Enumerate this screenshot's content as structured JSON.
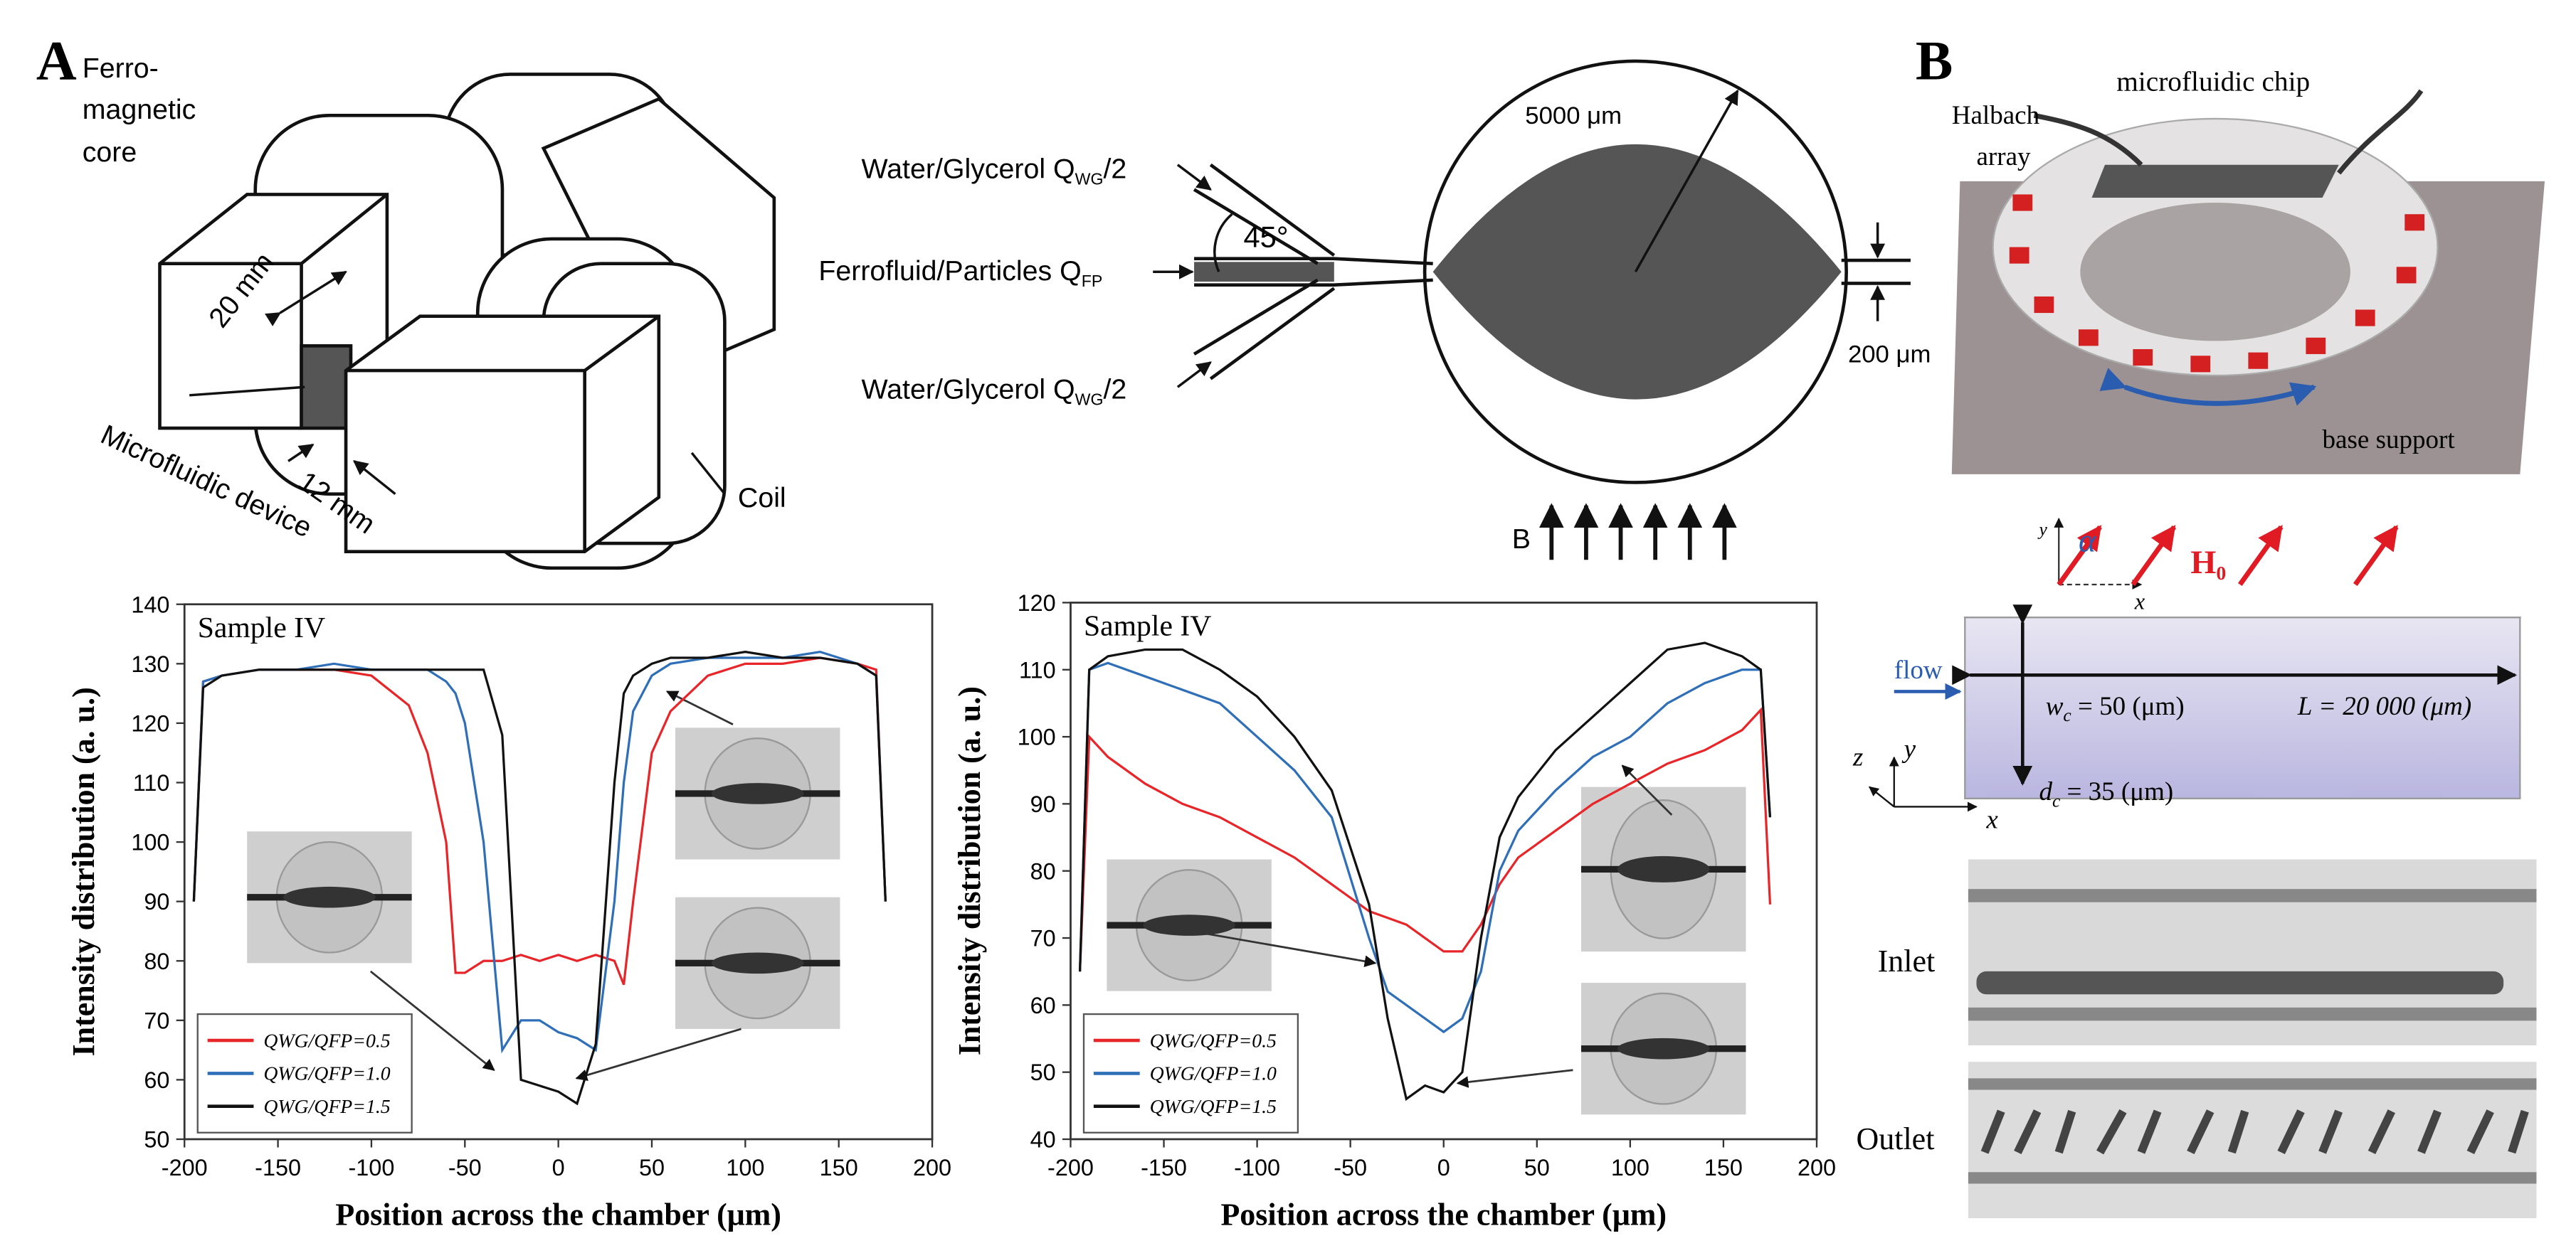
{
  "panels": {
    "a": "A",
    "b": "B"
  },
  "magnet": {
    "core": [
      "Ferro-",
      "magnetic",
      "core"
    ],
    "width": "20 mm",
    "device": "Microfluidic device",
    "gap": "12 mm",
    "coil": "Coil"
  },
  "chamber": {
    "inlet_top": {
      "text": "Water/Glycerol Q",
      "sub": "WG",
      "rest": "/2"
    },
    "inlet_mid": {
      "text": "Ferrofluid/Particles Q",
      "sub": "FP"
    },
    "inlet_bottom": {
      "text": "Water/Glycerol Q",
      "sub": "WG",
      "rest": "/2"
    },
    "angle": "45°",
    "radius": "5000 μm",
    "outlet": "200 μm",
    "field": "B"
  },
  "panel_b": {
    "chip": "microfluidic chip",
    "halbach": [
      "Halbach",
      "array"
    ],
    "base": "base support",
    "alpha": "α",
    "field": {
      "sym": "H",
      "sub": "0"
    },
    "flow": "flow",
    "wc": {
      "sym": "w",
      "sub": "c",
      "rest": " = 50 (μm)"
    },
    "length": "L = 20 000 (μm)",
    "dc": {
      "sym": "d",
      "sub": "c",
      "rest": " = 35 (μm)"
    },
    "axes": [
      "z",
      "y",
      "x",
      "y",
      "x"
    ],
    "inlet": "Inlet",
    "outlet": "Outlet"
  },
  "chart_data": [
    {
      "type": "line",
      "title": "Sample IV",
      "x_label": "Position across the chamber (μm)",
      "y_label": "Intensity distribution (a. u.)",
      "x": [
        -195,
        -190,
        -180,
        -160,
        -140,
        -120,
        -100,
        -80,
        -70,
        -60,
        -55,
        -50,
        -40,
        -30,
        -20,
        -10,
        0,
        10,
        20,
        30,
        35,
        40,
        50,
        60,
        80,
        100,
        120,
        140,
        160,
        170,
        175
      ],
      "series": [
        {
          "name": "QWG/QFP=0.5",
          "color": "#e8262a",
          "values": [
            90,
            127,
            128,
            129,
            129,
            129,
            128,
            123,
            115,
            100,
            78,
            78,
            80,
            80,
            81,
            80,
            81,
            80,
            81,
            80,
            76,
            90,
            115,
            122,
            128,
            130,
            130,
            131,
            130,
            129,
            90
          ]
        },
        {
          "name": "QWG/QFP=1.0",
          "color": "#2f6fb8",
          "values": [
            90,
            127,
            128,
            129,
            129,
            130,
            129,
            129,
            129,
            127,
            125,
            120,
            100,
            65,
            70,
            70,
            68,
            67,
            65,
            90,
            110,
            122,
            128,
            130,
            131,
            131,
            131,
            132,
            130,
            128,
            90
          ]
        },
        {
          "name": "QWG/QFP=1.5",
          "color": "#111111",
          "values": [
            90,
            126,
            128,
            129,
            129,
            129,
            129,
            129,
            129,
            129,
            129,
            129,
            129,
            118,
            60,
            59,
            58,
            56,
            66,
            110,
            125,
            128,
            130,
            131,
            131,
            132,
            131,
            131,
            130,
            128,
            90
          ]
        }
      ],
      "xlim": [
        -200,
        200
      ],
      "ylim": [
        50,
        140
      ],
      "xticks": [
        -200,
        -150,
        -100,
        -50,
        0,
        50,
        100,
        150,
        200
      ],
      "yticks": [
        50,
        60,
        70,
        80,
        90,
        100,
        110,
        120,
        130,
        140
      ],
      "legend": "lower left"
    },
    {
      "type": "line",
      "title": "Sample IV",
      "x_label": "Position across the chamber (μm)",
      "y_label": "Intensity distribution (a. u.)",
      "x": [
        -195,
        -190,
        -180,
        -160,
        -140,
        -120,
        -100,
        -80,
        -60,
        -40,
        -30,
        -20,
        -10,
        0,
        10,
        20,
        30,
        40,
        60,
        80,
        100,
        120,
        140,
        160,
        170,
        175
      ],
      "series": [
        {
          "name": "QWG/QFP=0.5",
          "color": "#e8262a",
          "values": [
            65,
            100,
            97,
            93,
            90,
            88,
            85,
            82,
            78,
            74,
            73,
            72,
            70,
            68,
            68,
            72,
            78,
            82,
            86,
            90,
            93,
            96,
            98,
            101,
            104,
            75
          ]
        },
        {
          "name": "QWG/QFP=1.0",
          "color": "#2f6fb8",
          "values": [
            65,
            110,
            111,
            109,
            107,
            105,
            100,
            95,
            88,
            70,
            62,
            60,
            58,
            56,
            58,
            65,
            80,
            86,
            92,
            97,
            100,
            105,
            108,
            110,
            110,
            88
          ]
        },
        {
          "name": "QWG/QFP=1.5",
          "color": "#111111",
          "values": [
            65,
            110,
            112,
            113,
            113,
            110,
            106,
            100,
            92,
            75,
            58,
            46,
            48,
            47,
            50,
            70,
            85,
            91,
            98,
            103,
            108,
            113,
            114,
            112,
            110,
            88
          ]
        }
      ],
      "xlim": [
        -200,
        200
      ],
      "ylim": [
        40,
        120
      ],
      "xticks": [
        -200,
        -150,
        -100,
        -50,
        0,
        50,
        100,
        150,
        200
      ],
      "yticks": [
        40,
        50,
        60,
        70,
        80,
        90,
        100,
        110,
        120
      ],
      "legend": "lower left"
    }
  ]
}
